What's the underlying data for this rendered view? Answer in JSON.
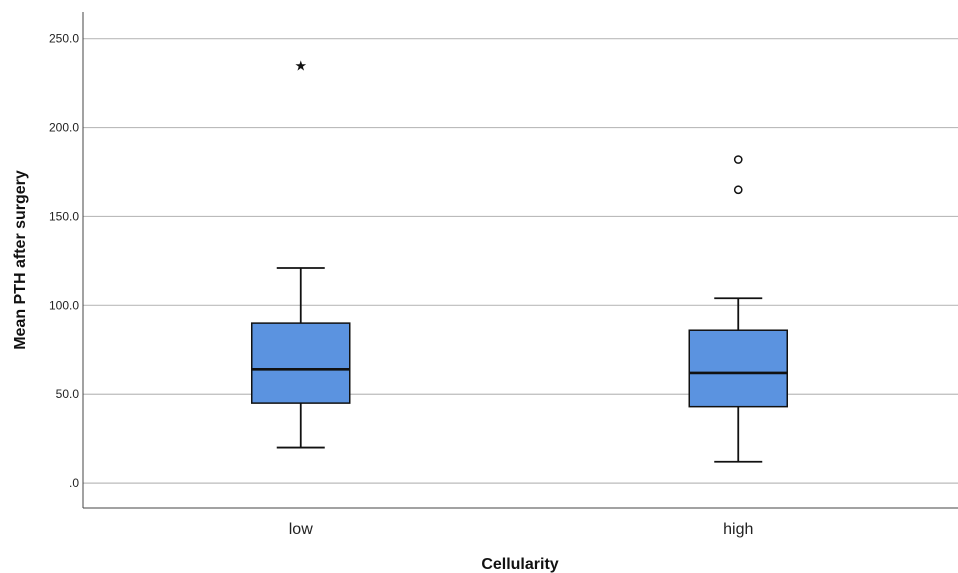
{
  "chart_data": {
    "type": "box",
    "xlabel": "Cellularity",
    "ylabel": "Mean PTH after surgery",
    "ylim": [
      -14,
      265
    ],
    "yticks": [
      0,
      50,
      100,
      150,
      200,
      250
    ],
    "ytick_labels": [
      ".0",
      "50.0",
      "100.0",
      "150.0",
      "200.0",
      "250.0"
    ],
    "grid": "horizontal",
    "categories": [
      "low",
      "high"
    ],
    "series": [
      {
        "category": "low",
        "whisker_low": 20,
        "q1": 45,
        "median": 64,
        "q3": 90,
        "whisker_high": 121,
        "outliers": [],
        "extremes": [
          235
        ]
      },
      {
        "category": "high",
        "whisker_low": 12,
        "q1": 43,
        "median": 62,
        "q3": 86,
        "whisker_high": 104,
        "outliers": [
          182,
          165
        ],
        "extremes": []
      }
    ],
    "colors": {
      "box_fill": "#5B93E0",
      "line": "#111111",
      "grid": "#BBBBBB"
    }
  }
}
